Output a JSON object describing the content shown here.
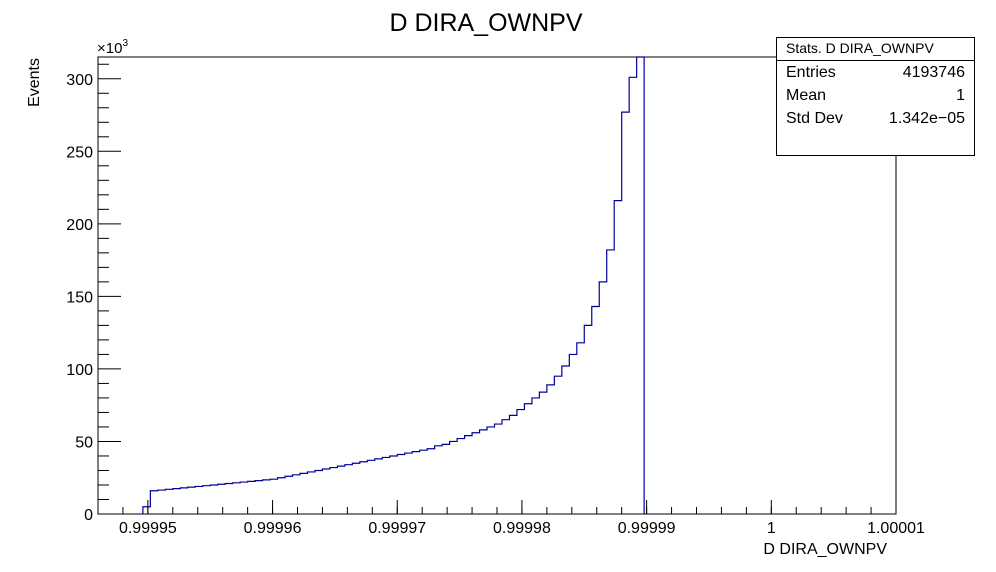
{
  "chart_data": {
    "type": "histogram",
    "title": "D DIRA_OWNPV",
    "xlabel": "D DIRA_OWNPV",
    "ylabel": "Events",
    "y_multiplier_label": "×10",
    "y_multiplier_exp": "3",
    "xlim": [
      0.999946,
      1.00001
    ],
    "ylim": [
      0,
      315
    ],
    "x_ticks": [
      0.99995,
      0.99996,
      0.99997,
      0.99998,
      0.99999,
      1,
      1.00001
    ],
    "x_tick_labels": [
      "0.99995",
      "0.99996",
      "0.99997",
      "0.99998",
      "0.99999",
      "1",
      "1.00001"
    ],
    "y_ticks": [
      0,
      50,
      100,
      150,
      200,
      250,
      300
    ],
    "y_tick_labels": [
      "0",
      "50",
      "100",
      "150",
      "200",
      "250",
      "300"
    ],
    "bin_width": 6e-07,
    "bin_start": 0.9999496,
    "values": [
      5,
      16,
      16.5,
      17,
      17.5,
      18,
      18.5,
      19,
      19.5,
      20,
      20.5,
      21,
      21.5,
      22,
      22.5,
      23,
      23.5,
      24,
      25,
      26,
      27,
      28,
      29,
      30,
      31,
      32,
      33,
      34,
      35,
      36,
      37,
      38,
      39,
      40,
      41,
      42,
      43,
      44,
      45,
      47,
      48,
      50,
      52,
      54,
      56,
      58,
      60,
      62,
      65,
      68,
      72,
      76,
      80,
      84,
      89,
      95,
      102,
      110,
      118,
      130,
      143,
      160,
      182,
      216,
      277,
      301,
      315
    ],
    "line_color": "#000099",
    "grid": false,
    "stats": {
      "title": "Stats. D DIRA_OWNPV",
      "rows": [
        {
          "label": "Entries",
          "value": "4193746"
        },
        {
          "label": "Mean",
          "value": "1"
        },
        {
          "label": "Std Dev",
          "value": "1.342e−05"
        }
      ]
    }
  }
}
